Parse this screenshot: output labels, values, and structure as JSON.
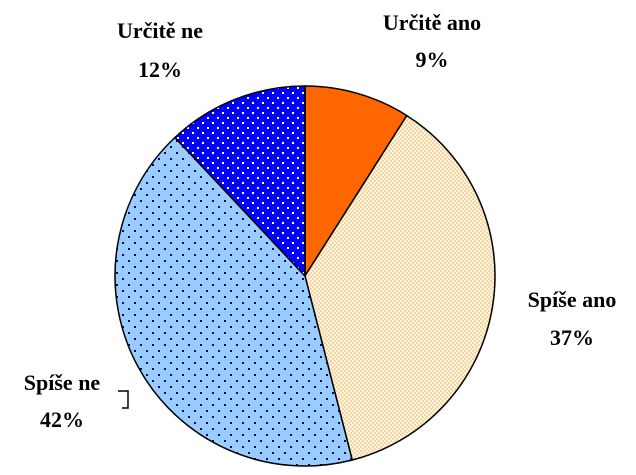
{
  "chart_data": {
    "type": "pie",
    "categories": [
      "Určitě ano",
      "Spíše ano",
      "Spíše ne",
      "Určitě ne"
    ],
    "values": [
      9,
      37,
      42,
      12
    ],
    "value_labels": [
      "9%",
      "37%",
      "42%",
      "12%"
    ],
    "colors": [
      "#ff6600",
      "#f5d8a0",
      "#99ccff",
      "#0000ff"
    ]
  }
}
